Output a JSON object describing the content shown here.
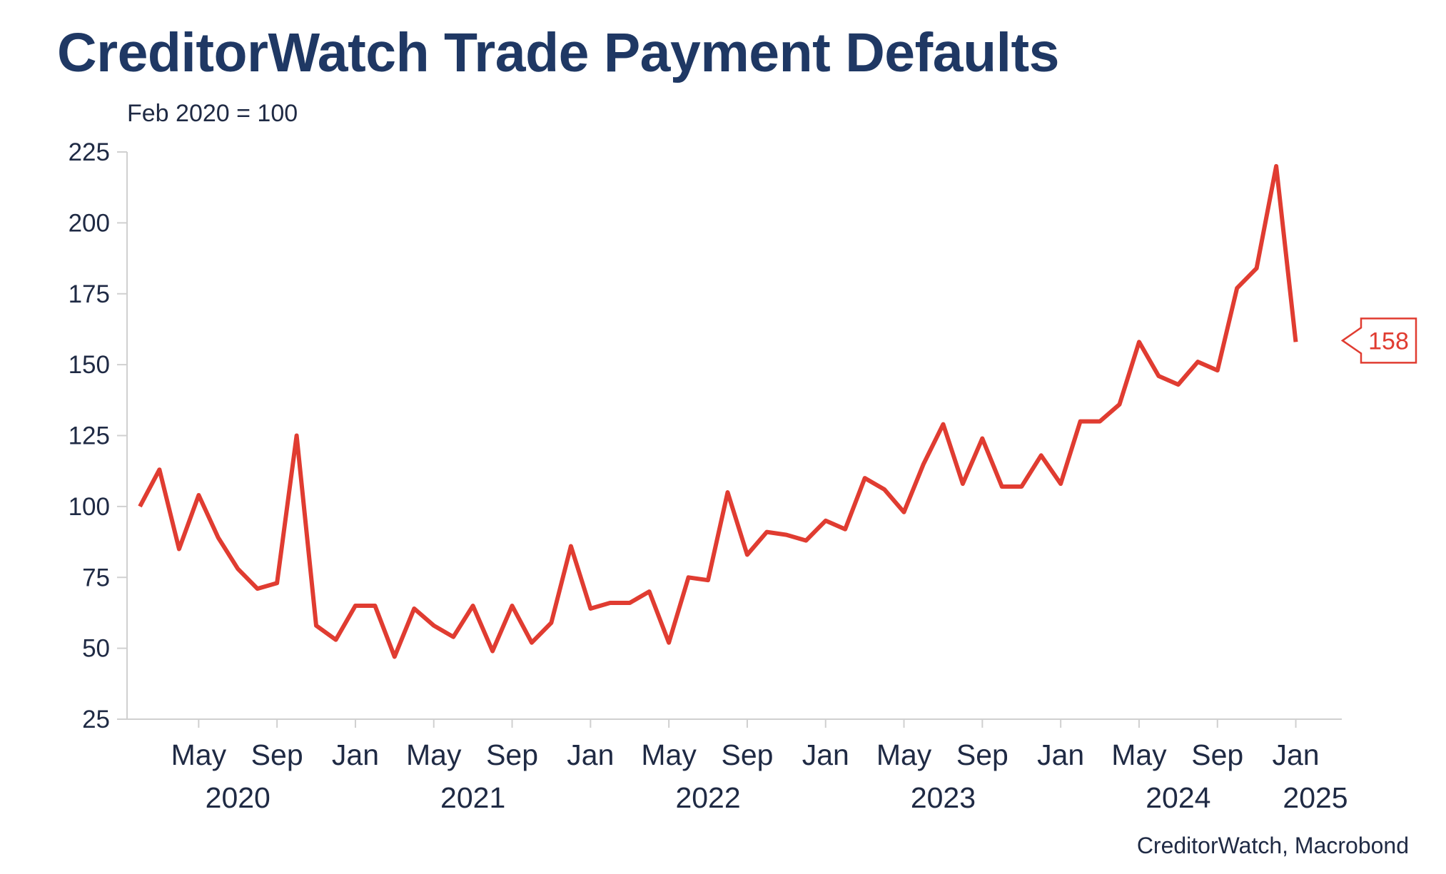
{
  "chart_data": {
    "type": "line",
    "title": "CreditorWatch Trade Payment Defaults",
    "subtitle": "Feb 2020 = 100",
    "source": "CreditorWatch, Macrobond",
    "ylim": [
      25,
      225
    ],
    "y_ticks": [
      25,
      50,
      75,
      100,
      125,
      150,
      175,
      200,
      225
    ],
    "x_month_ticks": [
      {
        "date": "2020-05",
        "label": "May"
      },
      {
        "date": "2020-09",
        "label": "Sep"
      },
      {
        "date": "2021-01",
        "label": "Jan"
      },
      {
        "date": "2021-05",
        "label": "May"
      },
      {
        "date": "2021-09",
        "label": "Sep"
      },
      {
        "date": "2022-01",
        "label": "Jan"
      },
      {
        "date": "2022-05",
        "label": "May"
      },
      {
        "date": "2022-09",
        "label": "Sep"
      },
      {
        "date": "2023-01",
        "label": "Jan"
      },
      {
        "date": "2023-05",
        "label": "May"
      },
      {
        "date": "2023-09",
        "label": "Sep"
      },
      {
        "date": "2024-01",
        "label": "Jan"
      },
      {
        "date": "2024-05",
        "label": "May"
      },
      {
        "date": "2024-09",
        "label": "Sep"
      },
      {
        "date": "2025-01",
        "label": "Jan"
      }
    ],
    "x_year_labels": [
      {
        "year": "2020",
        "center": "2020-07"
      },
      {
        "year": "2021",
        "center": "2021-07"
      },
      {
        "year": "2022",
        "center": "2022-07"
      },
      {
        "year": "2023",
        "center": "2023-07"
      },
      {
        "year": "2024",
        "center": "2024-07"
      },
      {
        "year": "2025",
        "center": "2025-02"
      }
    ],
    "grid": false,
    "series": [
      {
        "color": "#e03c31",
        "x": [
          "2020-02",
          "2020-03",
          "2020-04",
          "2020-05",
          "2020-06",
          "2020-07",
          "2020-08",
          "2020-09",
          "2020-10",
          "2020-11",
          "2020-12",
          "2021-01",
          "2021-02",
          "2021-03",
          "2021-04",
          "2021-05",
          "2021-06",
          "2021-07",
          "2021-08",
          "2021-09",
          "2021-10",
          "2021-11",
          "2021-12",
          "2022-01",
          "2022-02",
          "2022-03",
          "2022-04",
          "2022-05",
          "2022-06",
          "2022-07",
          "2022-08",
          "2022-09",
          "2022-10",
          "2022-11",
          "2022-12",
          "2023-01",
          "2023-02",
          "2023-03",
          "2023-04",
          "2023-05",
          "2023-06",
          "2023-07",
          "2023-08",
          "2023-09",
          "2023-10",
          "2023-11",
          "2023-12",
          "2024-01",
          "2024-02",
          "2024-03",
          "2024-04",
          "2024-05",
          "2024-06",
          "2024-07",
          "2024-08",
          "2024-09",
          "2024-10",
          "2024-11",
          "2024-12",
          "2025-01"
        ],
        "values": [
          100,
          113,
          85,
          104,
          89,
          78,
          71,
          73,
          125,
          58,
          53,
          65,
          65,
          47,
          64,
          58,
          54,
          65,
          49,
          65,
          52,
          59,
          86,
          64,
          66,
          66,
          70,
          52,
          75,
          74,
          105,
          83,
          91,
          90,
          88,
          95,
          92,
          110,
          106,
          98,
          115,
          129,
          108,
          124,
          107,
          107,
          118,
          108,
          130,
          130,
          136,
          158,
          146,
          143,
          151,
          148,
          177,
          184,
          220,
          158
        ]
      }
    ],
    "end_label": "158"
  }
}
